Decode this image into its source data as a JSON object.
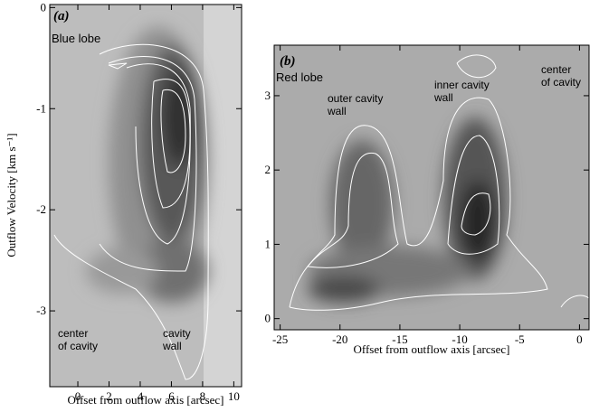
{
  "chart_data": [
    {
      "type": "contour",
      "title": "(a)",
      "subtitle": "Blue lobe",
      "x_label": "Offset from outflow axis [arcsec]",
      "y_label": "Outflow Velocity  [km s⁻¹]",
      "xlim": [
        -1.8,
        10.5
      ],
      "xticks": [
        0,
        2,
        4,
        6,
        8,
        10
      ],
      "ylim": [
        -3.75,
        0.03
      ],
      "yticks": [
        0,
        -1,
        -2,
        -3
      ],
      "annotations": [
        [
          "center",
          "of cavity"
        ],
        [
          "cavity",
          "wall"
        ]
      ]
    },
    {
      "type": "contour",
      "title": "(b)",
      "subtitle": "Red lobe",
      "x_label": "Offset from outflow axis [arcsec]",
      "xlim": [
        -25.5,
        0.8
      ],
      "xticks": [
        -25,
        -20,
        -15,
        -10,
        -5,
        0
      ],
      "ylim": [
        -0.15,
        3.68
      ],
      "yticks": [
        0,
        1,
        2,
        3
      ],
      "annotations": [
        [
          "outer cavity",
          "wall"
        ],
        [
          "inner cavity",
          "wall"
        ],
        [
          "center",
          "of cavity"
        ]
      ]
    }
  ]
}
